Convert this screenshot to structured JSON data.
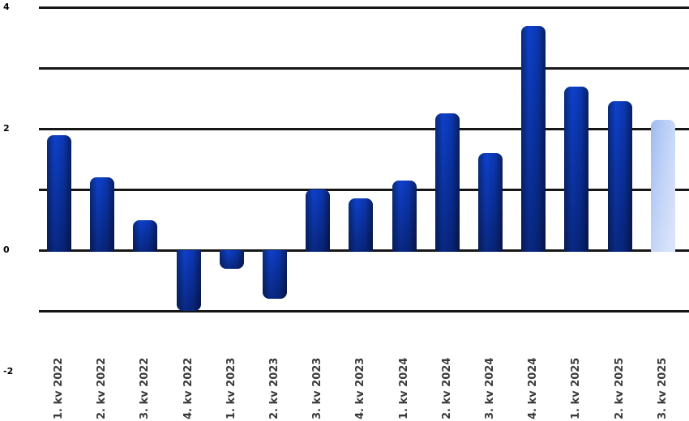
{
  "chart_data": {
    "type": "bar",
    "title": "",
    "xlabel": "",
    "ylabel": "",
    "categories": [
      "1. kv 2022",
      "2. kv 2022",
      "3. kv 2022",
      "4. kv 2022",
      "1. kv 2023",
      "2. kv 2023",
      "3. kv 2023",
      "4. kv 2023",
      "1. kv 2024",
      "2. kv 2024",
      "3. kv 2024",
      "4. kv 2024",
      "1. kv 2025",
      "2. kv 2025",
      "3. kv 2025"
    ],
    "values": [
      1.9,
      1.2,
      0.5,
      -1.0,
      -0.3,
      -0.8,
      1.0,
      0.85,
      1.15,
      2.25,
      1.6,
      3.7,
      2.7,
      2.45,
      2.15
    ],
    "forecast_indices": [
      14
    ],
    "ylim": [
      -1,
      4
    ],
    "gridline_values": [
      4,
      3,
      2,
      1,
      0,
      -1
    ],
    "y_ticks": [
      {
        "value": 4,
        "label": "4"
      },
      {
        "value": 2,
        "label": "2"
      },
      {
        "value": 0,
        "label": "0"
      },
      {
        "value": -2,
        "label": "-2"
      }
    ],
    "grid": true,
    "legend": false,
    "colors": {
      "bar_dark_main": "#0e41cc",
      "bar_dark_edge": "#081f60",
      "bar_forecast_main": "#b3c9f6",
      "bar_forecast_edge": "#9db9ef",
      "gridline": "#161616",
      "x_tick_color": "#3a3a3a",
      "y_tick_color": "#000000",
      "background": "#ffffff"
    }
  }
}
